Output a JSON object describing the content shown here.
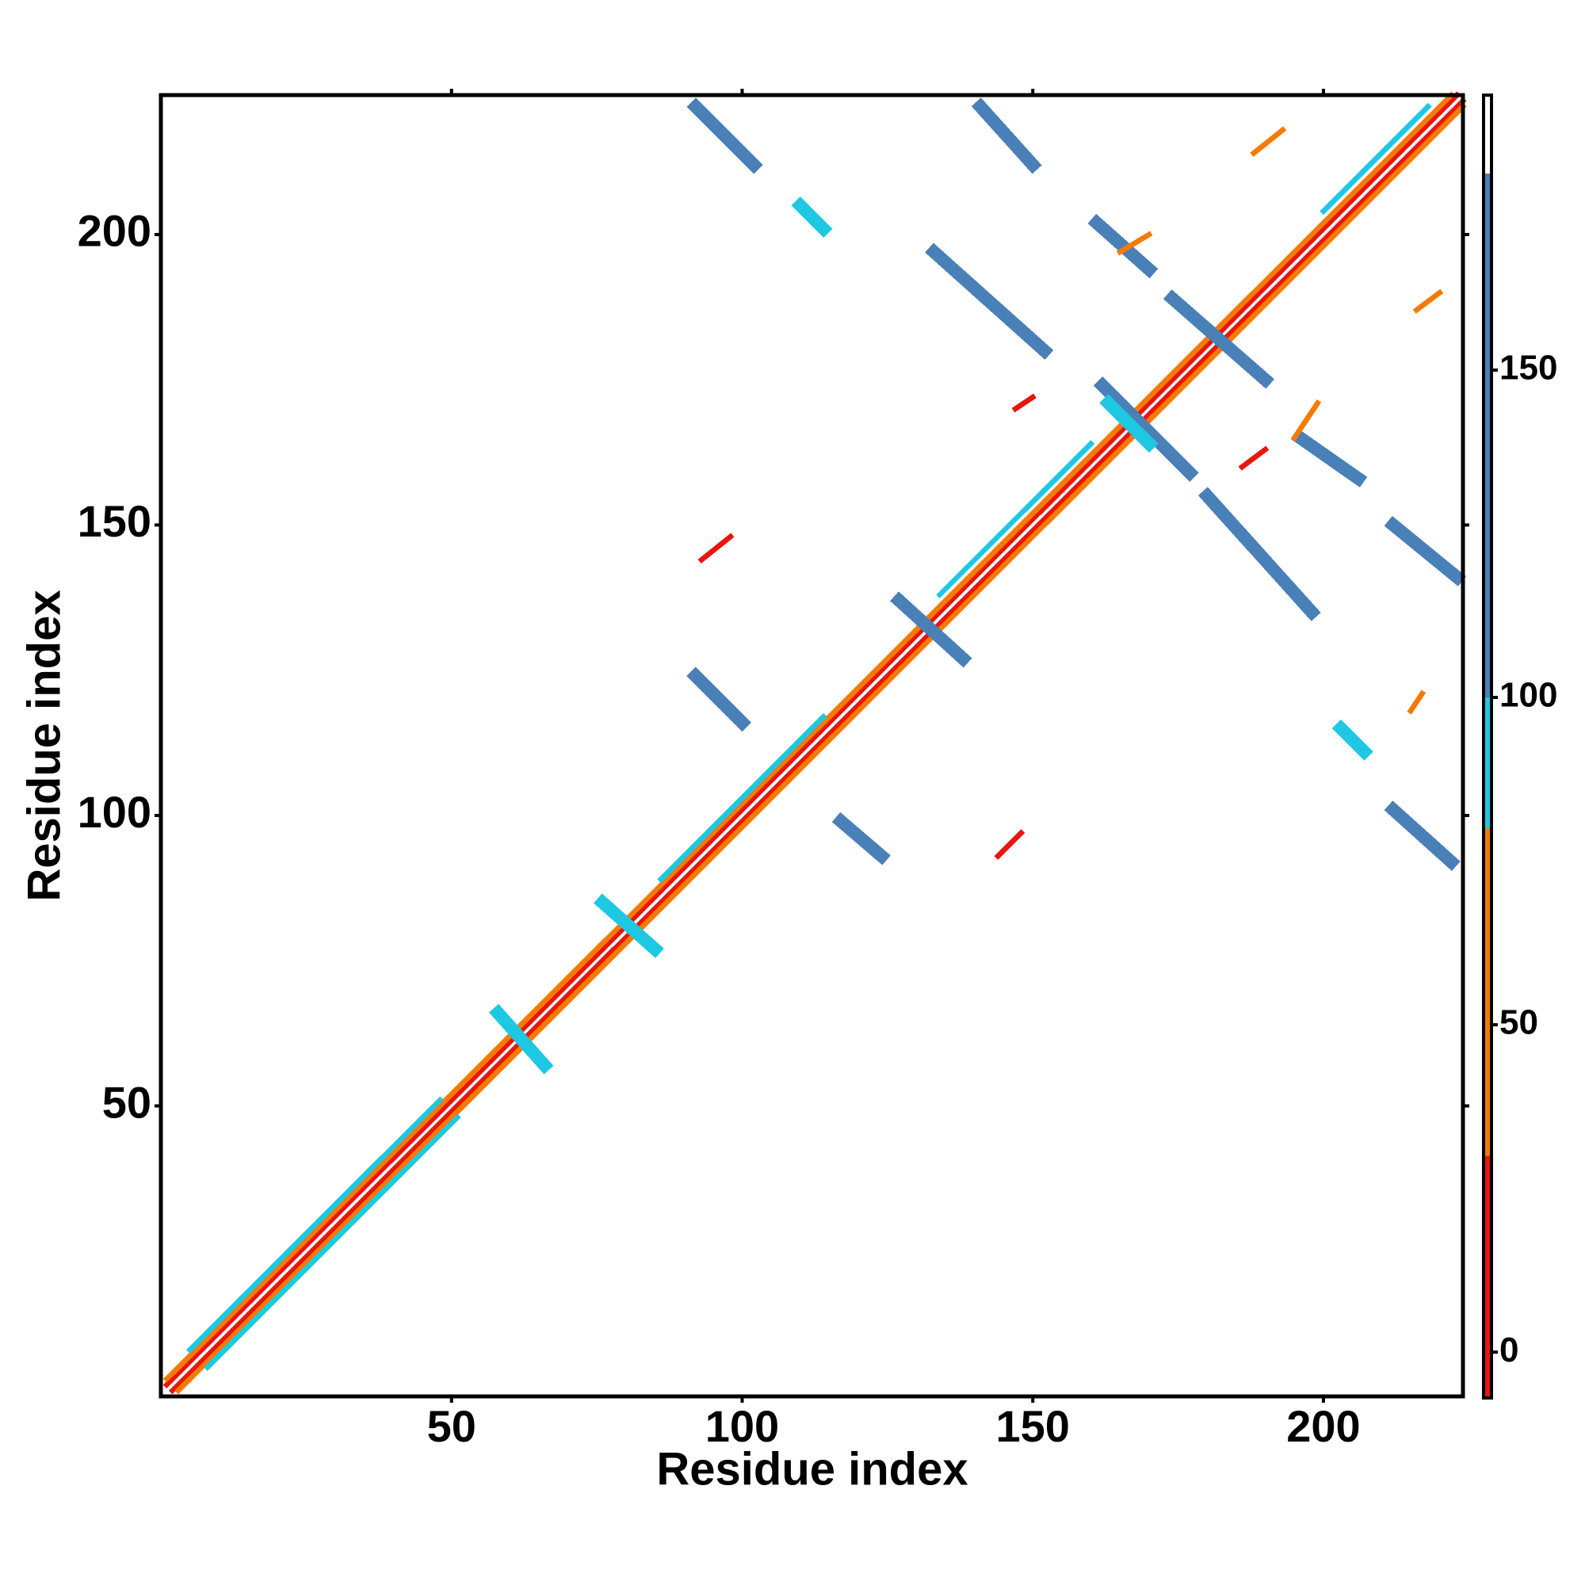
{
  "chart_data": {
    "type": "heatmap",
    "xlabel": "Residue index",
    "ylabel": "Residue index",
    "xlim": [
      0,
      224
    ],
    "ylim": [
      0,
      224
    ],
    "xticks": [
      50,
      100,
      150,
      200
    ],
    "yticks": [
      50,
      100,
      150,
      200
    ],
    "colorbar": {
      "lim": [
        -7,
        192
      ],
      "ticks": [
        0,
        50,
        100,
        150
      ],
      "bins": [
        -7,
        30,
        80,
        100,
        180,
        192
      ],
      "colors": [
        "#e8160c",
        "#f47b00",
        "#1ec8e3",
        "#4a80b8",
        "#ffffff"
      ]
    },
    "bands": [
      {
        "x": [
          1,
          223
        ],
        "y": [
          2,
          224
        ],
        "value": 10
      },
      {
        "x": [
          2,
          224
        ],
        "y": [
          1,
          223
        ],
        "value": 10
      },
      {
        "x": [
          1,
          222
        ],
        "y": [
          3,
          224
        ],
        "value": 55
      },
      {
        "x": [
          3,
          224
        ],
        "y": [
          1,
          222
        ],
        "value": 55
      },
      {
        "x": [
          5,
          48
        ],
        "y": [
          8,
          51
        ],
        "value": 90
      },
      {
        "x": [
          8,
          51
        ],
        "y": [
          5,
          48
        ],
        "value": 90
      },
      {
        "x": [
          86,
          114
        ],
        "y": [
          89,
          117
        ],
        "value": 90
      },
      {
        "x": [
          134,
          160
        ],
        "y": [
          138,
          164
        ],
        "value": 90
      },
      {
        "x": [
          200,
          218
        ],
        "y": [
          204,
          222
        ],
        "value": 90
      },
      {
        "x": [
          58,
          66
        ],
        "y": [
          66,
          57
        ],
        "value": 90
      },
      {
        "x": [
          76,
          85
        ],
        "y": [
          85,
          77
        ],
        "value": 90
      },
      {
        "x": [
          127,
          138
        ],
        "y": [
          137,
          127
        ],
        "value": 140
      },
      {
        "x": [
          92,
          102
        ],
        "y": [
          222,
          212
        ],
        "value": 140
      },
      {
        "x": [
          110,
          114
        ],
        "y": [
          205,
          201
        ],
        "value": 90
      },
      {
        "x": [
          141,
          150
        ],
        "y": [
          222,
          212
        ],
        "value": 140
      },
      {
        "x": [
          161,
          170
        ],
        "y": [
          202,
          194
        ],
        "value": 140
      },
      {
        "x": [
          133,
          152
        ],
        "y": [
          197,
          180
        ],
        "value": 140
      },
      {
        "x": [
          174,
          190
        ],
        "y": [
          189,
          175
        ],
        "value": 140
      },
      {
        "x": [
          162,
          177
        ],
        "y": [
          174,
          159
        ],
        "value": 140
      },
      {
        "x": [
          163,
          170
        ],
        "y": [
          171,
          164
        ],
        "value": 90
      },
      {
        "x": [
          180,
          198
        ],
        "y": [
          155,
          135
        ],
        "value": 140
      },
      {
        "x": [
          196,
          206
        ],
        "y": [
          165,
          158
        ],
        "value": 140
      },
      {
        "x": [
          212,
          223
        ],
        "y": [
          150,
          141
        ],
        "value": 140
      },
      {
        "x": [
          92,
          100
        ],
        "y": [
          124,
          116
        ],
        "value": 140
      },
      {
        "x": [
          117,
          124
        ],
        "y": [
          99,
          93
        ],
        "value": 140
      },
      {
        "x": [
          212,
          222
        ],
        "y": [
          101,
          92
        ],
        "value": 140
      },
      {
        "x": [
          203,
          207
        ],
        "y": [
          115,
          111
        ],
        "value": 90
      },
      {
        "x": [
          93,
          98
        ],
        "y": [
          144,
          148
        ],
        "value": 10
      },
      {
        "x": [
          144,
          148
        ],
        "y": [
          93,
          97
        ],
        "value": 10
      },
      {
        "x": [
          188,
          193
        ],
        "y": [
          214,
          218
        ],
        "value": 55
      },
      {
        "x": [
          216,
          220
        ],
        "y": [
          187,
          190
        ],
        "value": 55
      },
      {
        "x": [
          165,
          170
        ],
        "y": [
          197,
          200
        ],
        "value": 55
      },
      {
        "x": [
          195,
          199
        ],
        "y": [
          165,
          171
        ],
        "value": 55
      },
      {
        "x": [
          186,
          190
        ],
        "y": [
          160,
          163
        ],
        "value": 10
      },
      {
        "x": [
          147,
          150
        ],
        "y": [
          170,
          172
        ],
        "value": 10
      },
      {
        "x": [
          215,
          217
        ],
        "y": [
          118,
          121
        ],
        "value": 55
      }
    ]
  }
}
